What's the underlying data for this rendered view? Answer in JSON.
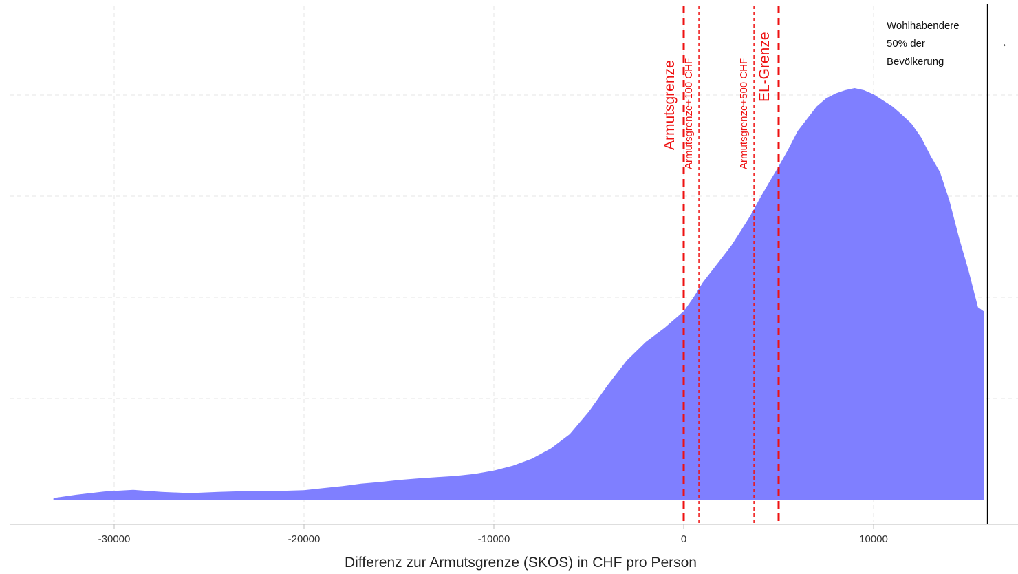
{
  "chart_data": {
    "type": "area",
    "title": "",
    "xlabel": "Differenz zur Armutsgrenze (SKOS) in CHF pro Person",
    "ylabel": "",
    "xlim": [
      -35000,
      17500
    ],
    "ylim": [
      0,
      1
    ],
    "grid": true,
    "x_ticks": [
      -30000,
      -20000,
      -10000,
      0,
      10000
    ],
    "x_tick_labels": [
      "-30000",
      "-20000",
      "-10000",
      "0",
      "10000"
    ],
    "fill_color": "#7f7fff",
    "series": [
      {
        "x": [
          -33200,
          -32000,
          -30500,
          -29000,
          -27500,
          -26000,
          -24500,
          -23000,
          -21500,
          -20000,
          -19000,
          -18000,
          -17000,
          -16000,
          -15000,
          -14000,
          -13000,
          -12000,
          -11000,
          -10000,
          -9000,
          -8000,
          -7000,
          -6000,
          -5000,
          -4000,
          -3000,
          -2000,
          -1000,
          0,
          500,
          1000,
          1500,
          2000,
          2500,
          3000,
          3500,
          4000,
          4500,
          5000,
          5500,
          6000,
          6500,
          7000,
          7500,
          8000,
          8500,
          9000,
          9500,
          10000,
          10500,
          11000,
          11500,
          12000,
          12500,
          13000,
          13500,
          14000,
          14500,
          15000,
          15500,
          15800
        ],
        "y": [
          0.004,
          0.012,
          0.02,
          0.024,
          0.019,
          0.016,
          0.019,
          0.021,
          0.021,
          0.023,
          0.028,
          0.033,
          0.039,
          0.043,
          0.048,
          0.052,
          0.055,
          0.058,
          0.063,
          0.071,
          0.083,
          0.1,
          0.125,
          0.16,
          0.215,
          0.28,
          0.34,
          0.385,
          0.42,
          0.46,
          0.493,
          0.53,
          0.56,
          0.59,
          0.62,
          0.656,
          0.693,
          0.735,
          0.775,
          0.814,
          0.855,
          0.9,
          0.93,
          0.96,
          0.98,
          0.992,
          1.0,
          1.005,
          1.0,
          0.99,
          0.975,
          0.96,
          0.94,
          0.918,
          0.885,
          0.84,
          0.8,
          0.73,
          0.64,
          0.56,
          0.47,
          0.46
        ]
      }
    ],
    "vertical_lines": [
      {
        "x": 0,
        "label": "Armutsgrenze",
        "style": "bold-dashed",
        "color": "#ee1111"
      },
      {
        "x": 800,
        "label": "Armutsgrenze+100 CHF",
        "style": "thin-dashed",
        "color": "#ee1111"
      },
      {
        "x": 3700,
        "label": "Armutsgrenze+500 CHF",
        "style": "thin-dashed",
        "color": "#ee1111"
      },
      {
        "x": 5000,
        "label": "EL-Grenze",
        "style": "bold-dashed",
        "color": "#ee1111"
      },
      {
        "x": 16000,
        "label": "",
        "style": "solid",
        "color": "#000000"
      }
    ],
    "annotation": {
      "lines": [
        "Wohlhabendere",
        "50% der",
        "Bevölkerung"
      ],
      "arrow": "→"
    }
  }
}
